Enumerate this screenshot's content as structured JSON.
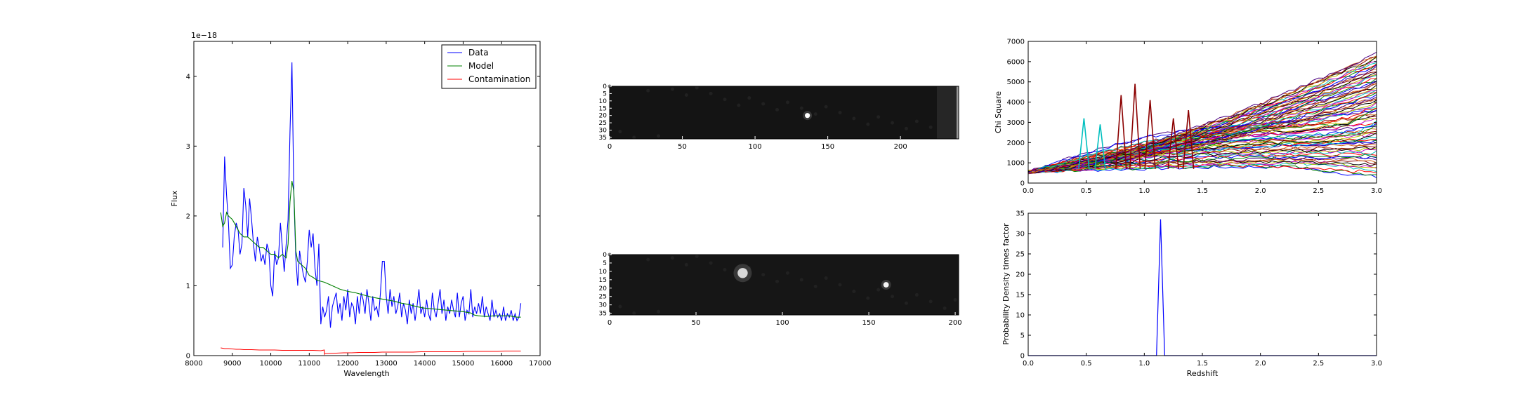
{
  "chart_data": [
    {
      "type": "line",
      "panel": "spectrum",
      "xlabel": "Wavelength",
      "ylabel": "Flux",
      "offset_label": "1e−18",
      "xlim": [
        8000,
        17000
      ],
      "ylim": [
        0,
        4.5
      ],
      "xticks": [
        8000,
        9000,
        10000,
        11000,
        12000,
        13000,
        14000,
        15000,
        16000,
        17000
      ],
      "yticks": [
        0,
        1,
        2,
        3,
        4
      ],
      "legend_position": "top-right",
      "grid": false,
      "series": [
        {
          "name": "Data",
          "color": "#0000ff",
          "x": [
            8750,
            8800,
            8850,
            8900,
            8950,
            9000,
            9050,
            9100,
            9150,
            9200,
            9250,
            9300,
            9350,
            9400,
            9450,
            9500,
            9550,
            9600,
            9650,
            9700,
            9750,
            9800,
            9850,
            9900,
            9950,
            10000,
            10050,
            10100,
            10150,
            10200,
            10250,
            10300,
            10350,
            10400,
            10450,
            10500,
            10550,
            10600,
            10650,
            10700,
            10750,
            10800,
            10850,
            10900,
            10950,
            11000,
            11050,
            11100,
            11150,
            11200,
            11250,
            11300,
            11350,
            11400,
            11450,
            11500,
            11550,
            11600,
            11650,
            11700,
            11750,
            11800,
            11850,
            11900,
            11950,
            12000,
            12050,
            12100,
            12150,
            12200,
            12250,
            12300,
            12350,
            12400,
            12450,
            12500,
            12550,
            12600,
            12650,
            12700,
            12750,
            12800,
            12850,
            12900,
            12950,
            13000,
            13050,
            13100,
            13150,
            13200,
            13250,
            13300,
            13350,
            13400,
            13450,
            13500,
            13550,
            13600,
            13650,
            13700,
            13750,
            13800,
            13850,
            13900,
            13950,
            14000,
            14050,
            14100,
            14150,
            14200,
            14250,
            14300,
            14350,
            14400,
            14450,
            14500,
            14550,
            14600,
            14650,
            14700,
            14750,
            14800,
            14850,
            14900,
            14950,
            15000,
            15050,
            15100,
            15150,
            15200,
            15250,
            15300,
            15350,
            15400,
            15450,
            15500,
            15550,
            15600,
            15650,
            15700,
            15750,
            15800,
            15850,
            15900,
            15950,
            16000,
            16050,
            16100,
            16150,
            16200,
            16250,
            16300,
            16350,
            16400,
            16450,
            16500
          ],
          "y": [
            1.55,
            2.85,
            2.3,
            1.9,
            1.25,
            1.3,
            1.7,
            1.9,
            1.8,
            1.45,
            1.6,
            2.4,
            2.15,
            1.7,
            2.25,
            1.95,
            1.6,
            1.35,
            1.7,
            1.55,
            1.35,
            1.45,
            1.3,
            1.6,
            1.5,
            1.0,
            0.85,
            1.5,
            1.3,
            1.4,
            1.9,
            1.55,
            1.2,
            1.6,
            1.95,
            3.2,
            4.2,
            2.3,
            1.4,
            1.0,
            1.5,
            1.3,
            1.15,
            1.05,
            1.35,
            1.8,
            1.55,
            1.75,
            1.25,
            1.0,
            1.6,
            0.45,
            0.7,
            0.55,
            0.65,
            0.85,
            0.4,
            0.7,
            0.8,
            0.9,
            0.6,
            0.75,
            0.5,
            0.85,
            0.65,
            0.95,
            0.55,
            0.75,
            0.7,
            0.45,
            0.85,
            0.6,
            0.9,
            0.8,
            0.6,
            0.95,
            0.75,
            0.5,
            0.85,
            0.65,
            0.7,
            0.55,
            0.9,
            1.35,
            1.35,
            0.85,
            0.6,
            0.95,
            0.7,
            0.85,
            0.6,
            0.7,
            0.9,
            0.55,
            0.75,
            0.65,
            0.45,
            0.8,
            0.6,
            0.75,
            0.5,
            0.7,
            0.95,
            0.6,
            0.7,
            0.55,
            0.8,
            0.6,
            0.5,
            0.9,
            0.65,
            0.55,
            0.75,
            0.95,
            0.6,
            0.8,
            0.5,
            0.7,
            0.6,
            0.8,
            0.65,
            0.55,
            0.9,
            0.55,
            0.75,
            0.85,
            0.5,
            0.65,
            0.6,
            0.95,
            0.55,
            0.7,
            0.6,
            0.75,
            0.6,
            0.85,
            0.55,
            0.7,
            0.6,
            0.5,
            0.8,
            0.55,
            0.65,
            0.55,
            0.6,
            0.5,
            0.7,
            0.5,
            0.6,
            0.55,
            0.65,
            0.5,
            0.6,
            0.5,
            0.55,
            0.75
          ]
        },
        {
          "name": "Model",
          "color": "#008000",
          "x": [
            8700,
            8750,
            8800,
            8850,
            8900,
            9000,
            9100,
            9200,
            9300,
            9400,
            9500,
            9600,
            9700,
            9800,
            9900,
            10000,
            10100,
            10200,
            10300,
            10400,
            10450,
            10500,
            10550,
            10600,
            10650,
            10700,
            10800,
            10900,
            11000,
            11100,
            11200,
            11400,
            11600,
            11800,
            12000,
            12200,
            12400,
            12600,
            12800,
            13000,
            13200,
            13400,
            13600,
            13800,
            14000,
            14200,
            14400,
            14600,
            14800,
            15000,
            15200,
            15300,
            15400,
            15600,
            15800,
            16000,
            16200,
            16400,
            16500
          ],
          "y": [
            2.05,
            1.85,
            1.9,
            2.05,
            2.0,
            1.95,
            1.85,
            1.75,
            1.7,
            1.7,
            1.65,
            1.6,
            1.55,
            1.55,
            1.5,
            1.45,
            1.45,
            1.4,
            1.45,
            1.4,
            1.6,
            2.2,
            2.5,
            2.35,
            1.5,
            1.35,
            1.3,
            1.25,
            1.15,
            1.12,
            1.08,
            1.05,
            1.0,
            0.95,
            0.92,
            0.9,
            0.87,
            0.84,
            0.82,
            0.8,
            0.78,
            0.75,
            0.73,
            0.7,
            0.68,
            0.67,
            0.66,
            0.65,
            0.64,
            0.63,
            0.61,
            0.58,
            0.57,
            0.56,
            0.57,
            0.57,
            0.57,
            0.55,
            0.55
          ]
        },
        {
          "name": "Contamination",
          "color": "#ff0000",
          "x": [
            8700,
            8800,
            8900,
            9000,
            9100,
            9200,
            9300,
            9500,
            9700,
            9900,
            10100,
            10300,
            10500,
            10700,
            10900,
            11100,
            11300,
            11390,
            11400,
            11410,
            11500,
            11700,
            11900,
            12100,
            12300,
            12500,
            12700,
            12900,
            13100,
            13300,
            13500,
            13700,
            13900,
            14100,
            14300,
            14500,
            14700,
            14900,
            15100,
            15300,
            15500,
            15700,
            15900,
            16100,
            16300,
            16500
          ],
          "y": [
            0.11,
            0.1,
            0.1,
            0.095,
            0.09,
            0.09,
            0.085,
            0.085,
            0.08,
            0.08,
            0.08,
            0.075,
            0.075,
            0.075,
            0.075,
            0.075,
            0.07,
            0.08,
            0.02,
            0.03,
            0.03,
            0.035,
            0.04,
            0.04,
            0.045,
            0.045,
            0.045,
            0.05,
            0.05,
            0.05,
            0.05,
            0.05,
            0.055,
            0.055,
            0.055,
            0.055,
            0.055,
            0.055,
            0.06,
            0.06,
            0.06,
            0.06,
            0.06,
            0.065,
            0.065,
            0.065
          ]
        }
      ]
    },
    {
      "type": "heatmap",
      "panel": "image-1",
      "colormap": "gray",
      "xlim": [
        0,
        240
      ],
      "ylim": [
        36,
        0
      ],
      "xticks": [
        0,
        50,
        100,
        150,
        200
      ],
      "yticks": [
        0,
        5,
        10,
        15,
        20,
        25,
        30,
        35
      ],
      "sources": [
        {
          "x": 136,
          "y": 20,
          "brightness": 1.0,
          "size": 1.2
        }
      ],
      "bright_column_x": 225
    },
    {
      "type": "heatmap",
      "panel": "image-2",
      "colormap": "gray",
      "xlim": [
        0,
        202
      ],
      "ylim": [
        36,
        0
      ],
      "xticks": [
        0,
        50,
        100,
        150,
        200
      ],
      "yticks": [
        0,
        5,
        10,
        15,
        20,
        25,
        30,
        35
      ],
      "sources": [
        {
          "x": 77,
          "y": 11,
          "brightness": 0.8,
          "size": 2.4
        },
        {
          "x": 160,
          "y": 18,
          "brightness": 0.95,
          "size": 1.3
        }
      ]
    },
    {
      "type": "line",
      "panel": "chi-square",
      "xlabel": "",
      "ylabel": "Chi Square",
      "xlim": [
        0,
        3.0
      ],
      "ylim": [
        0,
        7000
      ],
      "xticks": [
        0.0,
        0.5,
        1.0,
        1.5,
        2.0,
        2.5,
        3.0
      ],
      "xtick_labels": [
        "0.0",
        "0.5",
        "1.0",
        "1.5",
        "2.0",
        "2.5",
        "3.0"
      ],
      "yticks": [
        0,
        1000,
        2000,
        3000,
        4000,
        5000,
        6000,
        7000
      ],
      "grid": false,
      "series_count": 80,
      "series_colors": [
        "#0000ff",
        "#008000",
        "#ff0000",
        "#00bfbf",
        "#bf00bf",
        "#bfbf00",
        "#000000",
        "#8b0000",
        "#d2691e",
        "#4b0082"
      ],
      "series_end_range": [
        300,
        6400
      ],
      "series_start": 550,
      "peaks": [
        {
          "x": 0.48,
          "y": 3200,
          "color": "#00bfbf"
        },
        {
          "x": 0.62,
          "y": 2900,
          "color": "#00bfbf"
        },
        {
          "x": 0.8,
          "y": 4350,
          "color": "#8b0000"
        },
        {
          "x": 0.92,
          "y": 4900,
          "color": "#8b0000"
        },
        {
          "x": 1.05,
          "y": 4100,
          "color": "#8b0000"
        },
        {
          "x": 1.25,
          "y": 3200,
          "color": "#8b0000"
        },
        {
          "x": 1.38,
          "y": 3600,
          "color": "#8b0000"
        }
      ]
    },
    {
      "type": "line",
      "panel": "redshift-pdf",
      "xlabel": "Redshift",
      "ylabel": "Probability Density times factor",
      "xlim": [
        0,
        3.0
      ],
      "ylim": [
        0,
        35
      ],
      "xticks": [
        0.0,
        0.5,
        1.0,
        1.5,
        2.0,
        2.5,
        3.0
      ],
      "xtick_labels": [
        "0.0",
        "0.5",
        "1.0",
        "1.5",
        "2.0",
        "2.5",
        "3.0"
      ],
      "yticks": [
        0,
        5,
        10,
        15,
        20,
        25,
        30,
        35
      ],
      "grid": false,
      "series": [
        {
          "color": "#0000ff",
          "x": [
            0.0,
            1.105,
            1.14,
            1.175,
            3.0
          ],
          "y": [
            0,
            0,
            33.5,
            0,
            0
          ]
        }
      ]
    }
  ]
}
